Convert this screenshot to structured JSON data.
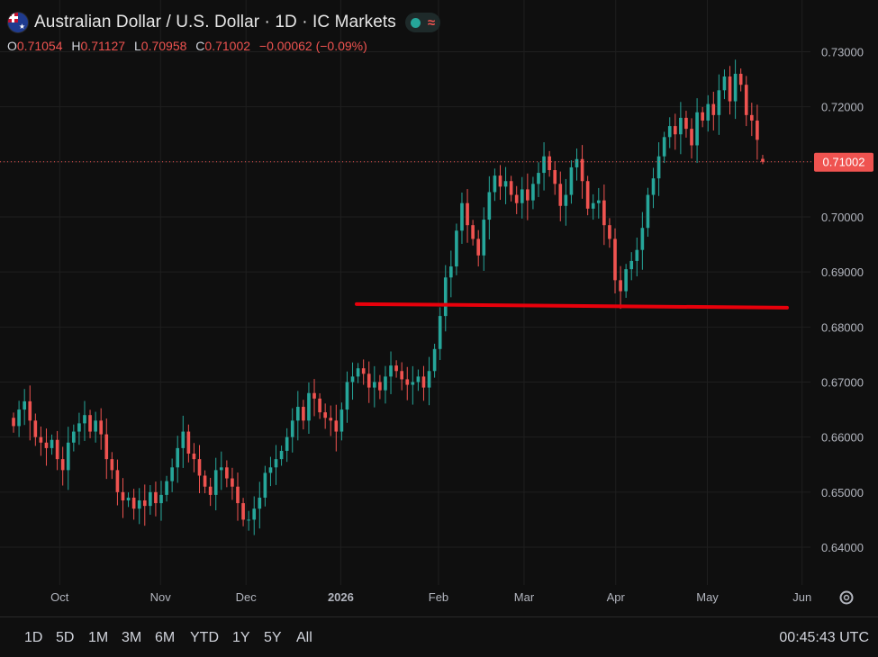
{
  "header": {
    "title": "Australian Dollar / U.S. Dollar · 1D · IC Markets",
    "ohlc": [
      {
        "label": "O",
        "value": "0.71054"
      },
      {
        "label": "H",
        "value": "0.71127"
      },
      {
        "label": "L",
        "value": "0.70958"
      },
      {
        "label": "C",
        "value": "0.71002"
      }
    ],
    "change": "−0.00062 (−0.09%)"
  },
  "colors": {
    "up": "#26a69a",
    "down": "#ef5350",
    "line": "#e8000b",
    "background": "#0f0f0f"
  },
  "chart_data": {
    "type": "candlestick",
    "yticks": [
      "0.73000",
      "0.72000",
      "0.71000",
      "0.70000",
      "0.69000",
      "0.68000",
      "0.67000",
      "0.66000",
      "0.65000",
      "0.64000"
    ],
    "ylim": [
      0.635,
      0.733
    ],
    "current_price_label": "0.71002",
    "current_price": 0.71002,
    "support_line": 0.684,
    "xticks": [
      {
        "label": "Oct",
        "date": "2025-10-01"
      },
      {
        "label": "Nov",
        "date": "2025-11-03"
      },
      {
        "label": "Dec",
        "date": "2025-12-01"
      },
      {
        "label": "2026",
        "date": "2026-01-01",
        "bold": true
      },
      {
        "label": "Feb",
        "date": "2026-02-02"
      },
      {
        "label": "Mar",
        "date": "2026-03-02"
      },
      {
        "label": "Apr",
        "date": "2026-04-01"
      },
      {
        "label": "May",
        "date": "2026-05-01"
      },
      {
        "label": "Jun",
        "date": "2026-06-01"
      }
    ],
    "start_date": "2025-09-15",
    "end_date": "2026-05-20",
    "closes": [
      0.662,
      0.665,
      0.6665,
      0.663,
      0.66,
      0.659,
      0.658,
      0.6595,
      0.656,
      0.654,
      0.659,
      0.661,
      0.6625,
      0.664,
      0.661,
      0.663,
      0.6605,
      0.656,
      0.654,
      0.65,
      0.6485,
      0.649,
      0.647,
      0.6485,
      0.6475,
      0.65,
      0.648,
      0.6495,
      0.652,
      0.6545,
      0.658,
      0.661,
      0.657,
      0.656,
      0.653,
      0.651,
      0.6495,
      0.654,
      0.6545,
      0.6525,
      0.651,
      0.648,
      0.645,
      0.645,
      0.647,
      0.649,
      0.6535,
      0.6545,
      0.656,
      0.6575,
      0.66,
      0.663,
      0.6655,
      0.663,
      0.668,
      0.667,
      0.6645,
      0.6635,
      0.663,
      0.661,
      0.665,
      0.67,
      0.671,
      0.6725,
      0.6715,
      0.669,
      0.67,
      0.6685,
      0.671,
      0.673,
      0.672,
      0.6705,
      0.6695,
      0.67,
      0.671,
      0.669,
      0.672,
      0.676,
      0.682,
      0.689,
      0.691,
      0.6975,
      0.7025,
      0.6985,
      0.696,
      0.693,
      0.6995,
      0.7045,
      0.7075,
      0.7055,
      0.7065,
      0.704,
      0.7025,
      0.705,
      0.703,
      0.706,
      0.708,
      0.711,
      0.7085,
      0.706,
      0.702,
      0.704,
      0.709,
      0.7105,
      0.7065,
      0.7015,
      0.7025,
      0.703,
      0.6985,
      0.696,
      0.6885,
      0.6865,
      0.6905,
      0.692,
      0.694,
      0.698,
      0.704,
      0.707,
      0.711,
      0.7145,
      0.7165,
      0.715,
      0.718,
      0.716,
      0.713,
      0.719,
      0.7175,
      0.7205,
      0.7185,
      0.723,
      0.7255,
      0.721,
      0.726,
      0.724,
      0.7185,
      0.7175,
      0.714,
      0.71
    ],
    "ohlc_last": {
      "open": 0.71054,
      "high": 0.71127,
      "low": 0.70958,
      "close": 0.71002
    }
  },
  "toolbar": {
    "ranges": [
      "1D",
      "5D",
      "1M",
      "3M",
      "6M",
      "YTD",
      "1Y",
      "5Y",
      "All"
    ],
    "time": "00:45:43 UTC",
    "settings_icon": "gear-icon"
  }
}
